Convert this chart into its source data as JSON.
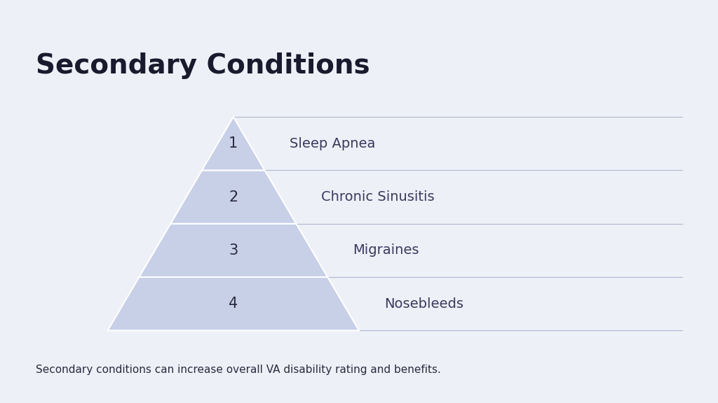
{
  "title": "Secondary Conditions",
  "title_fontsize": 28,
  "title_fontweight": "bold",
  "title_color": "#1a1a2e",
  "background_color": "#eef0f7",
  "pyramid_fill_color": "#c8d0e8",
  "pyramid_edge_color": "#ffffff",
  "divider_color": "#b0b8d0",
  "text_color": "#2a2a3e",
  "label_color": "#3a3a5e",
  "footnote": "Secondary conditions can increase overall VA disability rating and benefits.",
  "footnote_fontsize": 11,
  "layers": [
    {
      "number": "1",
      "label": "Sleep Apnea"
    },
    {
      "number": "2",
      "label": "Chronic Sinusitis"
    },
    {
      "number": "3",
      "label": "Migraines"
    },
    {
      "number": "4",
      "label": "Nosebleeds"
    }
  ],
  "num_layers": 4
}
